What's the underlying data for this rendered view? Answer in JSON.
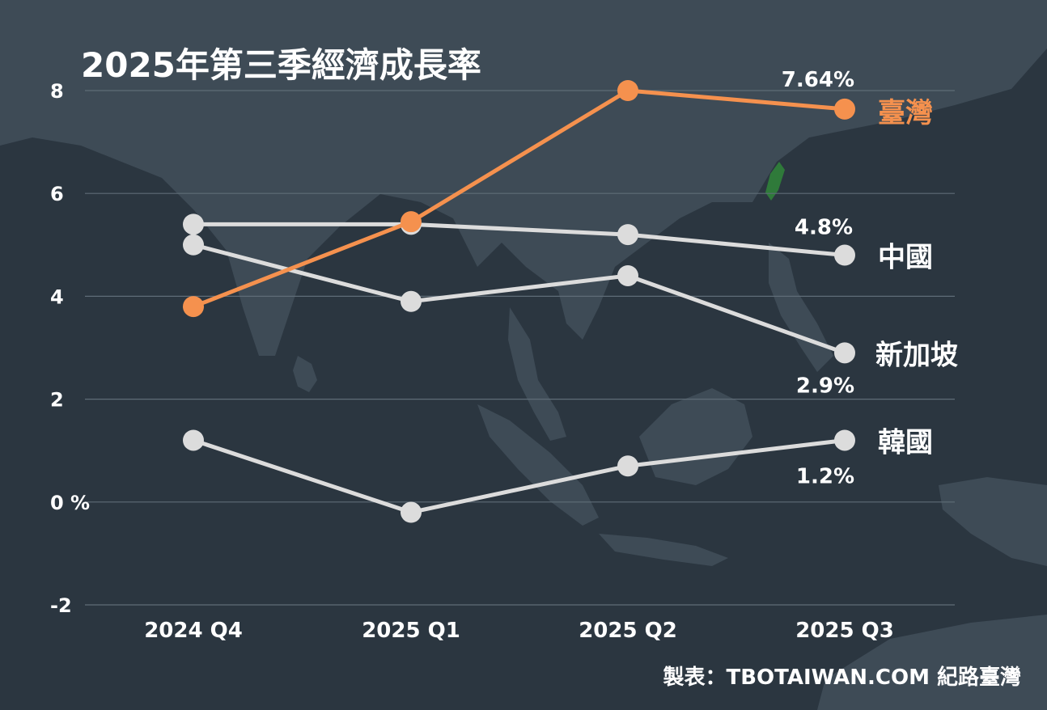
{
  "chart_data": {
    "type": "line",
    "title": "2025年第三季經濟成長率",
    "categories": [
      "2024 Q4",
      "2025 Q1",
      "2025 Q2",
      "2025 Q3"
    ],
    "y_ticks": [
      "8",
      "6",
      "4",
      "2",
      "0 %",
      "-2"
    ],
    "ylim": [
      -2,
      8
    ],
    "grid": true,
    "series": [
      {
        "name": "臺灣",
        "values": [
          3.8,
          5.45,
          8.0,
          7.64
        ],
        "color": "#f5914e",
        "end_label": "7.64%"
      },
      {
        "name": "中國",
        "values": [
          5.4,
          5.4,
          5.2,
          4.8
        ],
        "color": "#dcdcdc",
        "end_label": "4.8%"
      },
      {
        "name": "新加坡",
        "values": [
          5.0,
          3.9,
          4.4,
          2.9
        ],
        "color": "#dcdcdc",
        "end_label": "2.9%"
      },
      {
        "name": "韓國",
        "values": [
          1.2,
          -0.2,
          0.7,
          1.2
        ],
        "color": "#dcdcdc",
        "end_label": "1.2%"
      }
    ]
  },
  "credit": "製表：TBOTAIWAN.COM 紀路臺灣",
  "colors": {
    "background": "#2b3640",
    "land": "#3e4b56",
    "gridline": "#5f6c77",
    "highlight": "#f5914e",
    "taiwan_island": "#2f7a3a"
  }
}
